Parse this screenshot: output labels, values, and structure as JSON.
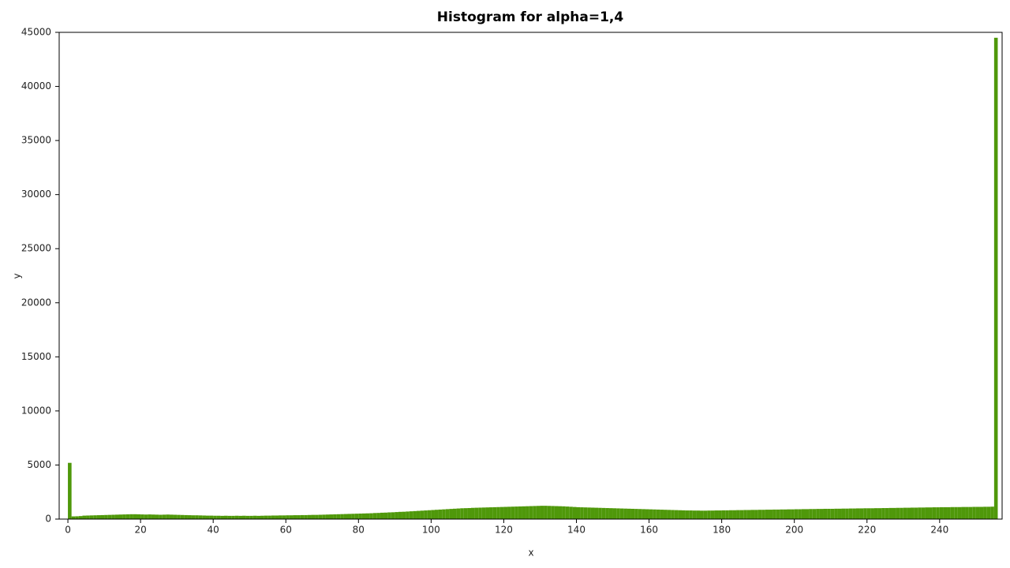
{
  "chart_data": {
    "type": "histogram",
    "title": "Histogram for alpha=1,4",
    "x_label": "x",
    "y_label": "y",
    "color": "#4f980a",
    "bins": [
      0,
      1,
      2,
      3,
      4,
      5,
      6,
      7,
      8,
      9,
      10,
      11,
      12,
      13,
      14,
      15,
      16,
      17,
      18,
      19,
      20,
      21,
      22,
      23,
      24,
      25,
      26,
      27,
      28,
      29,
      30,
      31,
      32,
      33,
      34,
      35,
      36,
      37,
      38,
      39,
      40,
      41,
      42,
      43,
      44,
      45,
      46,
      47,
      48,
      49,
      50,
      51,
      52,
      53,
      54,
      55,
      56,
      57,
      58,
      59,
      60,
      61,
      62,
      63,
      64,
      65,
      66,
      67,
      68,
      69,
      70,
      71,
      72,
      73,
      74,
      75,
      76,
      77,
      78,
      79,
      80,
      81,
      82,
      83,
      84,
      85,
      86,
      87,
      88,
      89,
      90,
      91,
      92,
      93,
      94,
      95,
      96,
      97,
      98,
      99,
      100,
      101,
      102,
      103,
      104,
      105,
      106,
      107,
      108,
      109,
      110,
      111,
      112,
      113,
      114,
      115,
      116,
      117,
      118,
      119,
      120,
      121,
      122,
      123,
      124,
      125,
      126,
      127,
      128,
      129,
      130,
      131,
      132,
      133,
      134,
      135,
      136,
      137,
      138,
      139,
      140,
      141,
      142,
      143,
      144,
      145,
      146,
      147,
      148,
      149,
      150,
      151,
      152,
      153,
      154,
      155,
      156,
      157,
      158,
      159,
      160,
      161,
      162,
      163,
      164,
      165,
      166,
      167,
      168,
      169,
      170,
      171,
      172,
      173,
      174,
      175,
      176,
      177,
      178,
      179,
      180,
      181,
      182,
      183,
      184,
      185,
      186,
      187,
      188,
      189,
      190,
      191,
      192,
      193,
      194,
      195,
      196,
      197,
      198,
      199,
      200,
      201,
      202,
      203,
      204,
      205,
      206,
      207,
      208,
      209,
      210,
      211,
      212,
      213,
      214,
      215,
      216,
      217,
      218,
      219,
      220,
      221,
      222,
      223,
      224,
      225,
      226,
      227,
      228,
      229,
      230,
      231,
      232,
      233,
      234,
      235,
      236,
      237,
      238,
      239,
      240,
      241,
      242,
      243,
      244,
      245,
      246,
      247,
      248,
      249,
      250,
      251,
      252,
      253,
      254,
      255,
      256
    ],
    "values": [
      5200,
      250,
      260,
      280,
      320,
      330,
      340,
      350,
      360,
      370,
      380,
      390,
      400,
      410,
      420,
      430,
      440,
      450,
      450,
      440,
      430,
      420,
      430,
      420,
      410,
      400,
      410,
      420,
      410,
      400,
      390,
      380,
      370,
      360,
      350,
      350,
      340,
      330,
      320,
      320,
      310,
      310,
      300,
      310,
      300,
      300,
      310,
      300,
      310,
      300,
      300,
      310,
      300,
      310,
      320,
      320,
      330,
      330,
      340,
      340,
      350,
      350,
      360,
      360,
      370,
      370,
      380,
      390,
      390,
      400,
      410,
      420,
      430,
      440,
      450,
      460,
      470,
      480,
      490,
      500,
      510,
      520,
      530,
      540,
      560,
      570,
      590,
      600,
      620,
      630,
      650,
      670,
      680,
      700,
      720,
      740,
      760,
      780,
      800,
      820,
      840,
      860,
      880,
      900,
      920,
      940,
      960,
      980,
      1000,
      1010,
      1020,
      1040,
      1050,
      1060,
      1070,
      1080,
      1090,
      1100,
      1110,
      1120,
      1130,
      1140,
      1150,
      1160,
      1170,
      1180,
      1190,
      1200,
      1210,
      1220,
      1230,
      1230,
      1220,
      1210,
      1200,
      1190,
      1180,
      1160,
      1140,
      1120,
      1100,
      1090,
      1080,
      1070,
      1060,
      1050,
      1040,
      1030,
      1020,
      1010,
      1000,
      990,
      980,
      970,
      960,
      950,
      940,
      930,
      920,
      910,
      900,
      890,
      880,
      870,
      860,
      850,
      840,
      830,
      820,
      810,
      800,
      800,
      790,
      790,
      780,
      780,
      790,
      790,
      800,
      800,
      810,
      810,
      820,
      820,
      830,
      830,
      840,
      840,
      850,
      850,
      860,
      860,
      870,
      870,
      880,
      880,
      890,
      890,
      900,
      900,
      910,
      910,
      920,
      920,
      930,
      930,
      940,
      940,
      950,
      950,
      950,
      960,
      960,
      970,
      970,
      980,
      980,
      990,
      990,
      1000,
      1000,
      1000,
      1010,
      1010,
      1020,
      1020,
      1030,
      1030,
      1040,
      1040,
      1050,
      1050,
      1060,
      1060,
      1070,
      1070,
      1080,
      1080,
      1090,
      1090,
      1100,
      1100,
      1100,
      1110,
      1110,
      1110,
      1120,
      1120,
      1120,
      1130,
      1130,
      1130,
      1140,
      1140,
      1150,
      44500
    ],
    "xlim": [
      -2.4,
      257.2
    ],
    "ylim": [
      0,
      45000
    ],
    "xticks": [
      0,
      20,
      40,
      60,
      80,
      100,
      120,
      140,
      160,
      180,
      200,
      220,
      240
    ],
    "yticks": [
      0,
      5000,
      10000,
      15000,
      20000,
      25000,
      30000,
      35000,
      40000,
      45000
    ]
  }
}
